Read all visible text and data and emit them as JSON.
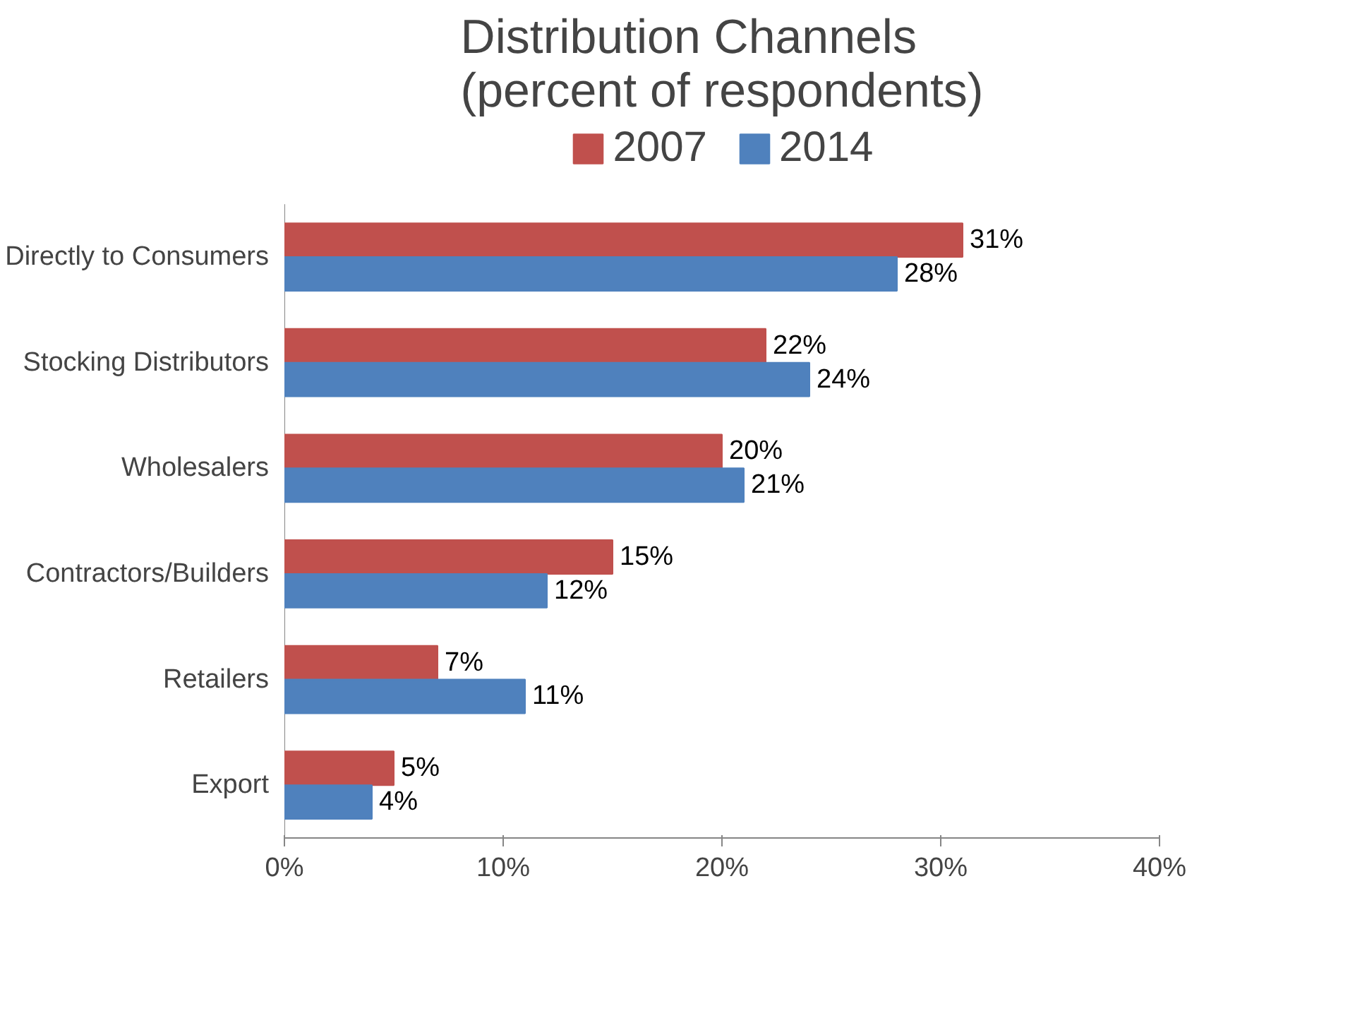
{
  "chart_data": {
    "type": "bar",
    "orientation": "horizontal",
    "title": "Distribution Channels\n(percent of respondents)",
    "categories": [
      "Directly to Consumers",
      "Stocking Distributors",
      "Wholesalers",
      "Contractors/Builders",
      "Retailers",
      "Export"
    ],
    "series": [
      {
        "name": "2007",
        "color": "#c0504d",
        "values": [
          31,
          22,
          20,
          15,
          7,
          5
        ],
        "value_labels": [
          "31%",
          "22%",
          "20%",
          "15%",
          "7%",
          "5%"
        ]
      },
      {
        "name": "2014",
        "color": "#4f81bd",
        "values": [
          28,
          24,
          21,
          12,
          11,
          4
        ],
        "value_labels": [
          "28%",
          "24%",
          "21%",
          "12%",
          "11%",
          "4%"
        ]
      }
    ],
    "xlim": [
      0,
      40
    ],
    "xticks": [
      {
        "value": 0,
        "label": "0%"
      },
      {
        "value": 10,
        "label": "10%"
      },
      {
        "value": 20,
        "label": "20%"
      },
      {
        "value": 30,
        "label": "30%"
      },
      {
        "value": 40,
        "label": "40%"
      }
    ],
    "grid": false,
    "legend": "top"
  }
}
